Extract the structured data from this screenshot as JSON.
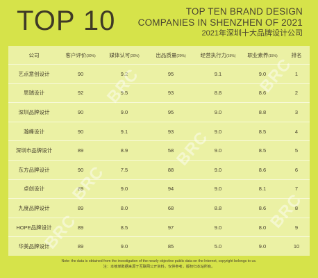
{
  "header": {
    "big_title": "TOP 10",
    "title_line1": "TOP TEN BRAND DESIGN",
    "title_line2": "COMPANIES IN SHENZHEN OF 2021",
    "title_line3": "2021年深圳十大品牌设计公司"
  },
  "table": {
    "columns": [
      {
        "label": "公司",
        "unit": ""
      },
      {
        "label": "客户评价",
        "unit": "(30%)"
      },
      {
        "label": "媒体认可",
        "unit": "(20%)"
      },
      {
        "label": "出品质量",
        "unit": "(20%)"
      },
      {
        "label": "经营执行力",
        "unit": "(15%)"
      },
      {
        "label": "职业素养",
        "unit": "(15%)"
      },
      {
        "label": "排名",
        "unit": ""
      }
    ],
    "rows": [
      {
        "company": "艺点意创设计",
        "c1": "90",
        "c2": "9.2",
        "c3": "95",
        "c4": "9.1",
        "c5": "9.0",
        "rank": "1"
      },
      {
        "company": "思瑞设计",
        "c1": "92",
        "c2": "9.5",
        "c3": "93",
        "c4": "8.8",
        "c5": "8.6",
        "rank": "2"
      },
      {
        "company": "深圳品牌设计",
        "c1": "90",
        "c2": "9.0",
        "c3": "95",
        "c4": "9.0",
        "c5": "8.8",
        "rank": "3"
      },
      {
        "company": "瀚峰设计",
        "c1": "90",
        "c2": "9.1",
        "c3": "93",
        "c4": "9.0",
        "c5": "8.5",
        "rank": "4"
      },
      {
        "company": "深圳市品牌设计",
        "c1": "89",
        "c2": "8.9",
        "c3": "58",
        "c4": "9.0",
        "c5": "8.5",
        "rank": "5"
      },
      {
        "company": "东方品牌设计",
        "c1": "90",
        "c2": "7.5",
        "c3": "88",
        "c4": "9.0",
        "c5": "8.6",
        "rank": "6"
      },
      {
        "company": "卓创设计",
        "c1": "89",
        "c2": "9.0",
        "c3": "94",
        "c4": "9.0",
        "c5": "8.1",
        "rank": "7"
      },
      {
        "company": "九度品牌设计",
        "c1": "89",
        "c2": "8.0",
        "c3": "68",
        "c4": "8.8",
        "c5": "8.6",
        "rank": "8"
      },
      {
        "company": "HOPE品牌设计",
        "c1": "89",
        "c2": "8.5",
        "c3": "97",
        "c4": "9.0",
        "c5": "8.0",
        "rank": "9"
      },
      {
        "company": "华美品牌设计",
        "c1": "89",
        "c2": "9.0",
        "c3": "85",
        "c4": "5.0",
        "c5": "9.0",
        "rank": "10"
      }
    ]
  },
  "footer": {
    "line1": "Note: the data is obtained from the investigation of the nearly objective public data on the Internet, copyright belongs to us.",
    "line2": "注：本榜单数据来源于互联网公开资料，仅供参考，版权归本站所有。"
  },
  "watermark": {
    "text": "BRC"
  },
  "colors": {
    "background": "#d6e34a",
    "table_background": "#ebf1a4",
    "text": "#3d3a2a"
  }
}
